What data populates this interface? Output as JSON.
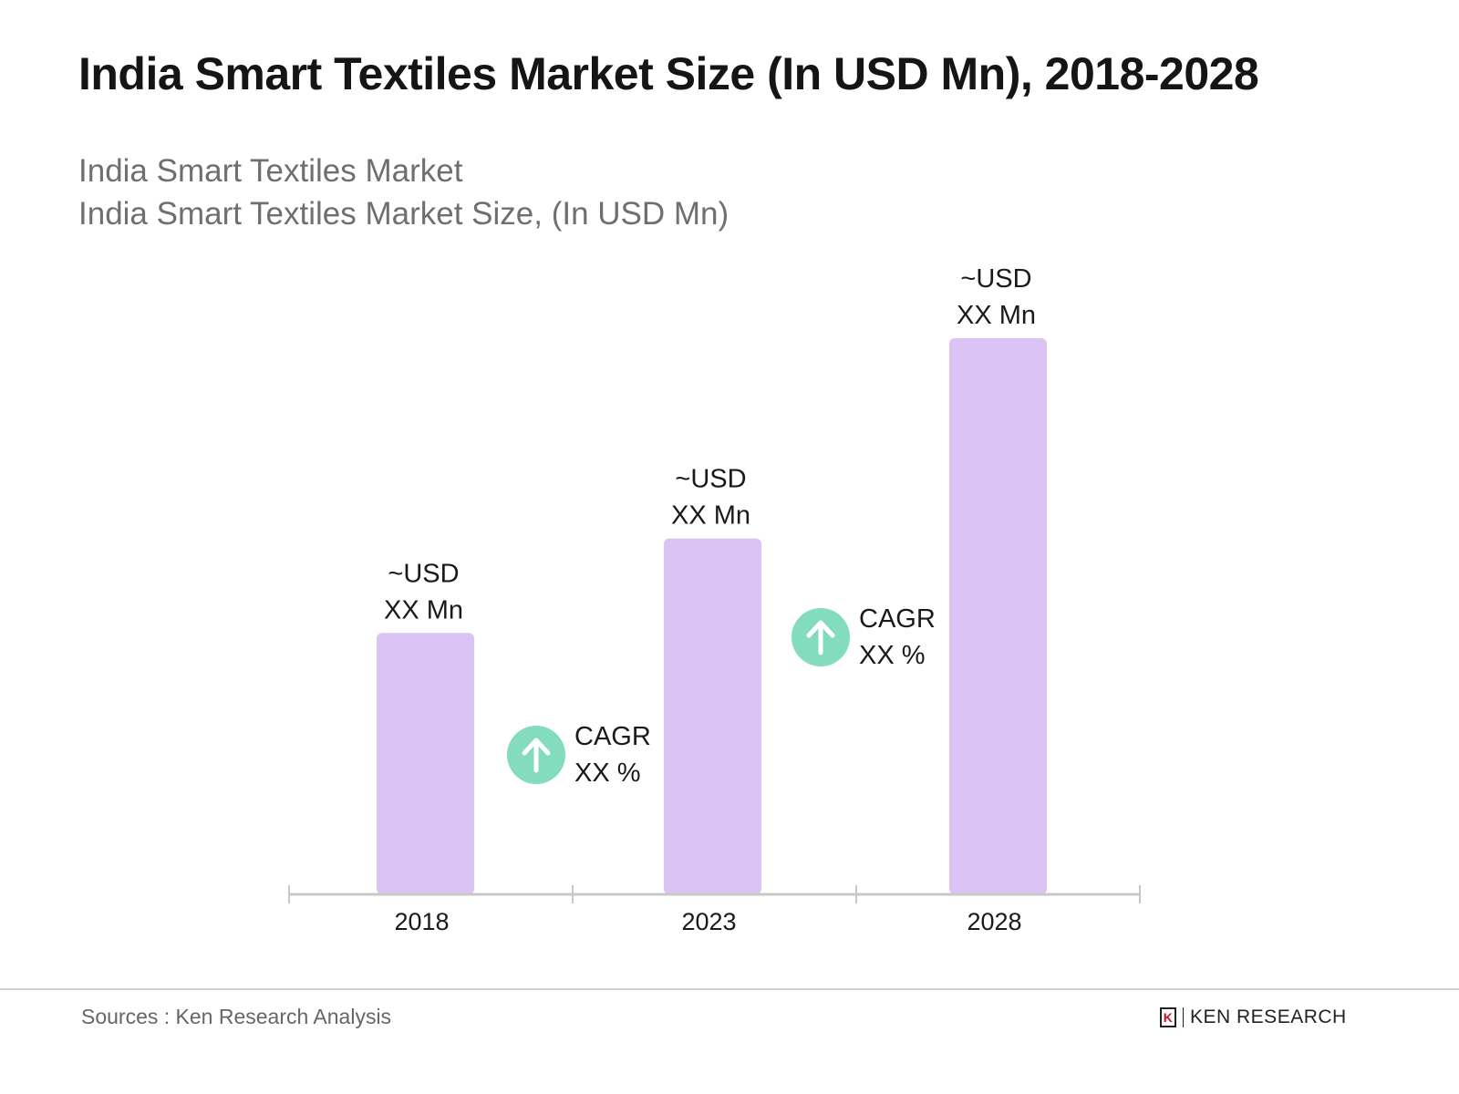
{
  "chart_data": {
    "type": "bar",
    "title": "India Smart Textiles Market Size (In USD Mn), 2018-2028",
    "subtitle_lines": [
      "India Smart Textiles Market",
      "India Smart Textiles Market Size, (In USD Mn)"
    ],
    "categories": [
      "2018",
      "2023",
      "2028"
    ],
    "values_relative": [
      0.47,
      0.64,
      1.0
    ],
    "data_labels": [
      [
        "~USD",
        "XX Mn"
      ],
      [
        "~USD",
        "XX Mn"
      ],
      [
        "~USD",
        "XX Mn"
      ]
    ],
    "cagr_annotations": [
      {
        "between": [
          "2018",
          "2023"
        ],
        "lines": [
          "CAGR",
          "XX %"
        ],
        "icon": "arrow-up-circle-icon"
      },
      {
        "between": [
          "2023",
          "2028"
        ],
        "lines": [
          "CAGR",
          "XX %"
        ],
        "icon": "arrow-up-circle-icon"
      }
    ],
    "xlabel": "",
    "ylabel": "",
    "grid": false,
    "colors": {
      "bar": "#dcc3f6",
      "cagr_icon": "#84dcbf",
      "axis": "#c8c8c8"
    }
  },
  "footer": {
    "source": "Sources : Ken Research Analysis",
    "logo_text": "KEN RESEARCH"
  }
}
